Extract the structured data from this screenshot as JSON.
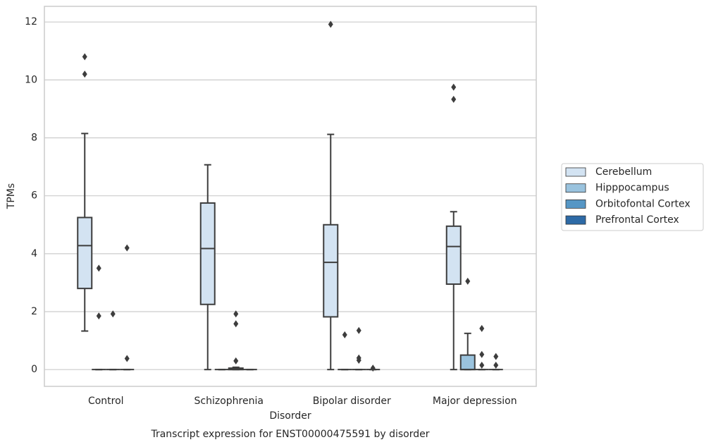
{
  "chart_data": {
    "type": "box",
    "title": "Transcript expression for ENST00000475591 by disorder",
    "xlabel": "Disorder",
    "ylabel": "TPMs",
    "categories": [
      "Control",
      "Schizophrenia",
      "Bipolar disorder",
      "Major depression"
    ],
    "ylim": [
      -0.58,
      12.54
    ],
    "yticks": [
      0,
      2,
      4,
      6,
      8,
      10,
      12
    ],
    "grid": true,
    "series": [
      {
        "name": "Cerebellum",
        "color": "#d3e3f2",
        "boxes": [
          {
            "whislo": 1.33,
            "q1": 2.8,
            "med": 4.28,
            "q3": 5.25,
            "whishi": 8.15,
            "fliers": [
              10.2,
              10.8
            ]
          },
          {
            "whislo": 0,
            "q1": 2.25,
            "med": 4.18,
            "q3": 5.75,
            "whishi": 7.07,
            "fliers": []
          },
          {
            "whislo": 0,
            "q1": 1.82,
            "med": 3.7,
            "q3": 5.0,
            "whishi": 8.12,
            "fliers": [
              11.92
            ]
          },
          {
            "whislo": 0,
            "q1": 2.95,
            "med": 4.25,
            "q3": 4.95,
            "whishi": 5.45,
            "fliers": [
              9.33,
              9.75
            ]
          }
        ]
      },
      {
        "name": "Hipppocampus",
        "color": "#9ac3de",
        "boxes": [
          {
            "whislo": 0,
            "q1": 0,
            "med": 0,
            "q3": 0,
            "whishi": 0,
            "fliers": [
              1.85,
              3.5
            ]
          },
          {
            "whislo": 0,
            "q1": 0,
            "med": 0,
            "q3": 0,
            "whishi": 0,
            "fliers": []
          },
          {
            "whislo": 0,
            "q1": 0,
            "med": 0,
            "q3": 0,
            "whishi": 0,
            "fliers": [
              1.2
            ]
          },
          {
            "whislo": 0,
            "q1": 0,
            "med": 0,
            "q3": 0.5,
            "whishi": 1.25,
            "fliers": [
              3.05
            ]
          }
        ]
      },
      {
        "name": "Orbitofontal Cortex",
        "color": "#5596c5",
        "boxes": [
          {
            "whislo": 0,
            "q1": 0,
            "med": 0,
            "q3": 0,
            "whishi": 0,
            "fliers": [
              1.92
            ]
          },
          {
            "whislo": 0,
            "q1": 0,
            "med": 0,
            "q3": 0.05,
            "whishi": 0.08,
            "fliers": [
              0.3,
              1.58,
              1.92
            ]
          },
          {
            "whislo": 0,
            "q1": 0,
            "med": 0,
            "q3": 0,
            "whishi": 0,
            "fliers": [
              0.32,
              0.4,
              1.35
            ]
          },
          {
            "whislo": 0,
            "q1": 0,
            "med": 0,
            "q3": 0,
            "whishi": 0,
            "fliers": [
              0.15,
              0.52,
              1.42
            ]
          }
        ]
      },
      {
        "name": "Prefrontal Cortex",
        "color": "#2d6aa6",
        "boxes": [
          {
            "whislo": 0,
            "q1": 0,
            "med": 0,
            "q3": 0,
            "whishi": 0,
            "fliers": [
              0.38,
              4.2
            ]
          },
          {
            "whislo": 0,
            "q1": 0,
            "med": 0,
            "q3": 0,
            "whishi": 0,
            "fliers": []
          },
          {
            "whislo": 0,
            "q1": 0,
            "med": 0,
            "q3": 0,
            "whishi": 0,
            "fliers": [
              0.05
            ]
          },
          {
            "whislo": 0,
            "q1": 0,
            "med": 0,
            "q3": 0,
            "whishi": 0,
            "fliers": [
              0.15,
              0.45
            ]
          }
        ]
      }
    ]
  }
}
